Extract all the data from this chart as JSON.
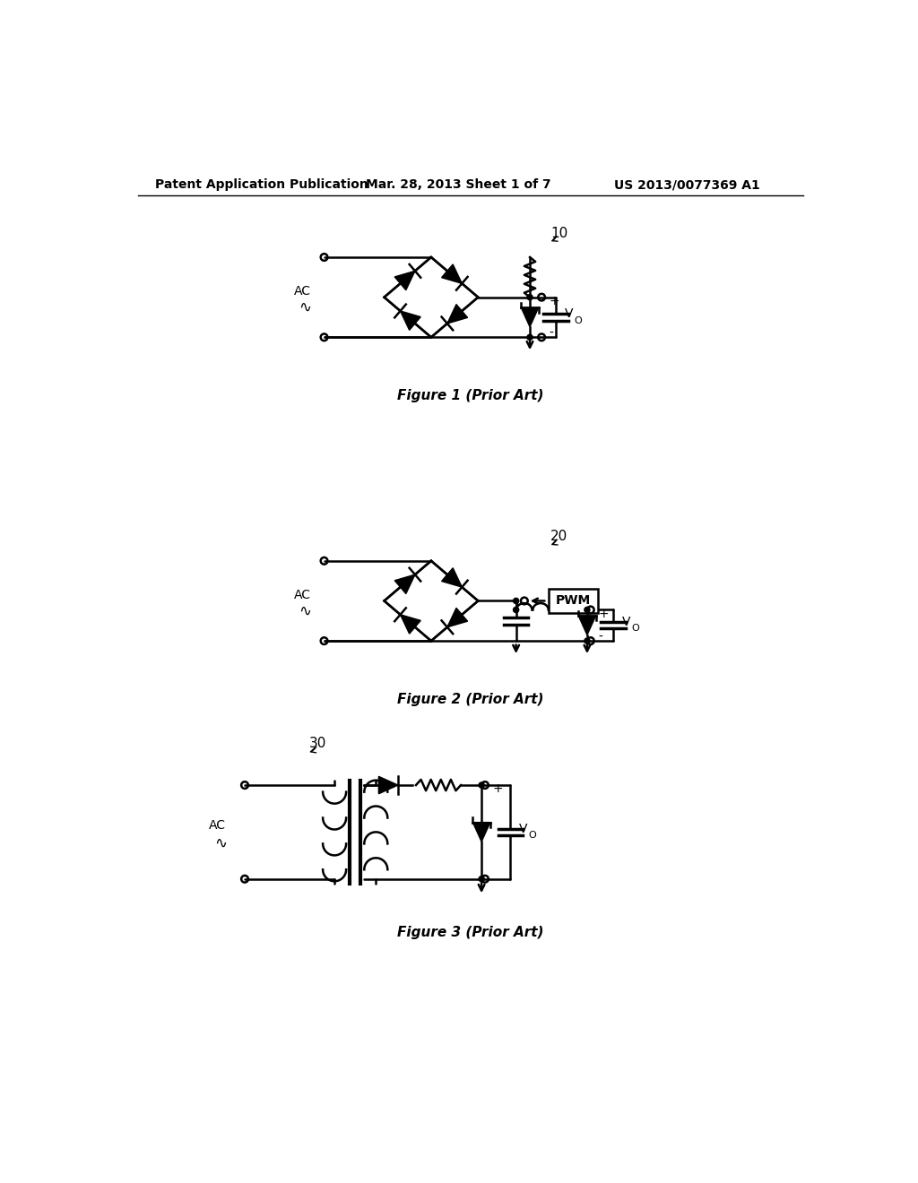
{
  "title": "Patent Application Publication",
  "date": "Mar. 28, 2013 Sheet 1 of 7",
  "patent_num": "US 2013/0077369 A1",
  "fig1_label": "Figure 1 (Prior Art)",
  "fig2_label": "Figure 2 (Prior Art)",
  "fig3_label": "Figure 3 (Prior Art)",
  "fig1_num": "10",
  "fig2_num": "20",
  "fig3_num": "30",
  "bg_color": "#ffffff"
}
